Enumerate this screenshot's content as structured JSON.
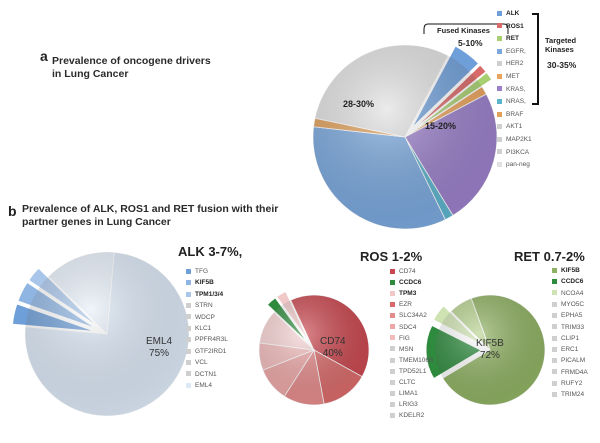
{
  "panel_a": {
    "label": "a",
    "title_line1": "Prevalence of oncogene drivers",
    "title_line2": "in Lung Cancer",
    "fused_label": "Fused Kinases",
    "fused_pct": "5-10%",
    "targeted_label_line1": "Targeted",
    "targeted_label_line2": "Kinases",
    "targeted_pct": "30-35%"
  },
  "panel_b": {
    "label": "b",
    "title_line1": "Prevalence of ALK, ROS1 and RET fusion with their",
    "title_line2": "partner genes in Lung Cancer"
  },
  "chart_data": [
    {
      "type": "pie",
      "id": "drivers",
      "legend": [
        "ALK",
        "ROS1",
        "RET",
        "EGFR,",
        "HER2",
        "MET",
        "KRAS,",
        "NRAS,",
        "BRAF",
        "AKT1",
        "MAP2K1",
        "PI3KCA",
        "pan-neg"
      ],
      "legend_bold": [
        "ALK",
        "ROS1",
        "RET"
      ],
      "slices": [
        {
          "label": "ALK",
          "value": 5,
          "color": "#6f9fd8",
          "explode": true
        },
        {
          "label": "ROS1",
          "value": 1.5,
          "color": "#d96a6a",
          "explode": true
        },
        {
          "label": "RET",
          "value": 1.5,
          "color": "#a9cf73",
          "explode": true
        },
        {
          "label": "MET",
          "value": 1.5,
          "color": "#e9a35c"
        },
        {
          "label": "KRAS,",
          "value": 24,
          "color": "#9a7fc9"
        },
        {
          "label": "NRAS,",
          "value": 1.5,
          "color": "#5cb3cc"
        },
        {
          "label": "EGFR,",
          "value": 34,
          "color": "#7aa8dd"
        },
        {
          "label": "BRAF",
          "value": 1.5,
          "color": "#e0a05a"
        },
        {
          "label": "pan-neg",
          "value": 29.5,
          "color": "#e1e1e1"
        }
      ],
      "inner_labels": [
        {
          "text": "28-30%"
        },
        {
          "text": "15-20%"
        }
      ]
    },
    {
      "type": "pie",
      "id": "alk",
      "header": "ALK  3-7%,",
      "center_label": "EML4",
      "center_pct": "75%",
      "legend": [
        "TFG",
        "KIF5B",
        "TPM1/3/4",
        "STRN",
        "WDCP",
        "KLC1",
        "PPFR4R3L",
        "GTF2IRD1",
        "VCL",
        "DCTN1",
        "EML4"
      ],
      "legend_bold": [
        "KIF5B",
        "TPM1/3/4"
      ],
      "slices": [
        {
          "label": "EML4",
          "value": 75,
          "color": "#dce8f6"
        },
        {
          "label": "TFG",
          "value": 4,
          "color": "#6f9fd8",
          "explode": true
        },
        {
          "label": "KIF5B",
          "value": 4,
          "color": "#8fb5e2",
          "explode": true
        },
        {
          "label": "TPM1/3/4",
          "value": 3,
          "color": "#a9c6ea",
          "explode": true
        },
        {
          "label": "other",
          "value": 14,
          "color": "#e7eff9"
        }
      ]
    },
    {
      "type": "pie",
      "id": "ros",
      "header": "ROS  1-2%",
      "center_label": "CD74",
      "center_pct": "40%",
      "legend": [
        "CD74",
        "CCDC6",
        "TPM3",
        "EZR",
        "SLC34A2",
        "SDC4",
        "FIG",
        "MSN",
        "TMEM106B",
        "TPD52L1",
        "CLTC",
        "LIMA1",
        "LRIG3",
        "KDELR2"
      ],
      "legend_bold": [
        "CCDC6",
        "TPM3"
      ],
      "slices": [
        {
          "label": "CD74",
          "value": 40,
          "color": "#c9474f"
        },
        {
          "label": "EZR",
          "value": 14,
          "color": "#d96a6a"
        },
        {
          "label": "SLC34A2",
          "value": 12,
          "color": "#e58b8b"
        },
        {
          "label": "SDC4",
          "value": 10,
          "color": "#eda7a7"
        },
        {
          "label": "FIG",
          "value": 8,
          "color": "#f2bcbc"
        },
        {
          "label": "other",
          "value": 10,
          "color": "#f7d3d3"
        },
        {
          "label": "CCDC6",
          "value": 3,
          "color": "#2e8b3e",
          "explode": true
        },
        {
          "label": "TPM3",
          "value": 3,
          "color": "#f0c8c8",
          "explode": true
        }
      ]
    },
    {
      "type": "pie",
      "id": "ret",
      "header": "RET  0.7-2%",
      "center_label": "KIF5B",
      "center_pct": "72%",
      "legend": [
        "KIF5B",
        "CCDC6",
        "NCOA4",
        "MYO5C",
        "EPHA5",
        "TRIM33",
        "CLIP1",
        "ERC1",
        "PICALM",
        "FRMD4A",
        "RUFY2",
        "TRIM24"
      ],
      "legend_bold": [
        "KIF5B",
        "CCDC6"
      ],
      "slices": [
        {
          "label": "KIF5B",
          "value": 72,
          "color": "#8fb162"
        },
        {
          "label": "CCDC6",
          "value": 16,
          "color": "#2e8b3e",
          "explode": true
        },
        {
          "label": "NCOA4",
          "value": 5,
          "color": "#cfe3b2",
          "explode": true
        },
        {
          "label": "other",
          "value": 7,
          "color": "#b7d28f"
        }
      ]
    }
  ]
}
